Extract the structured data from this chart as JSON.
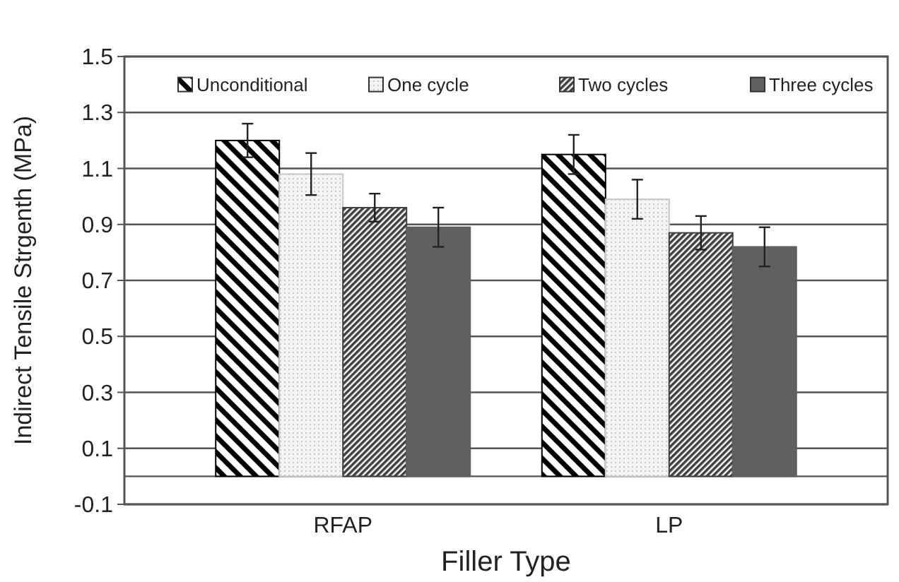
{
  "chart_data": {
    "type": "bar",
    "xlabel": "Filler Type",
    "ylabel": "Indirect Tensile Strgenth (MPa)",
    "categories": [
      "RFAP",
      "LP"
    ],
    "series": [
      {
        "name": "Unconditional",
        "color": "#000000",
        "values": [
          1.2,
          1.15
        ],
        "errors": [
          0.06,
          0.07
        ]
      },
      {
        "name": "One cycle",
        "color": "#c8c8c8",
        "values": [
          1.08,
          0.99
        ],
        "errors": [
          0.075,
          0.07
        ]
      },
      {
        "name": "Two cycles",
        "color": "#404040",
        "values": [
          0.96,
          0.87
        ],
        "errors": [
          0.05,
          0.06
        ]
      },
      {
        "name": "Three cycles",
        "color": "#606060",
        "values": [
          0.89,
          0.82
        ],
        "errors": [
          0.07,
          0.07
        ]
      }
    ],
    "ylim": [
      -0.1,
      1.5
    ],
    "yticks": [
      -0.1,
      0.1,
      0.3,
      0.5,
      0.7,
      0.9,
      1.1,
      1.3,
      1.5
    ],
    "grid": "y",
    "legend": "top"
  }
}
